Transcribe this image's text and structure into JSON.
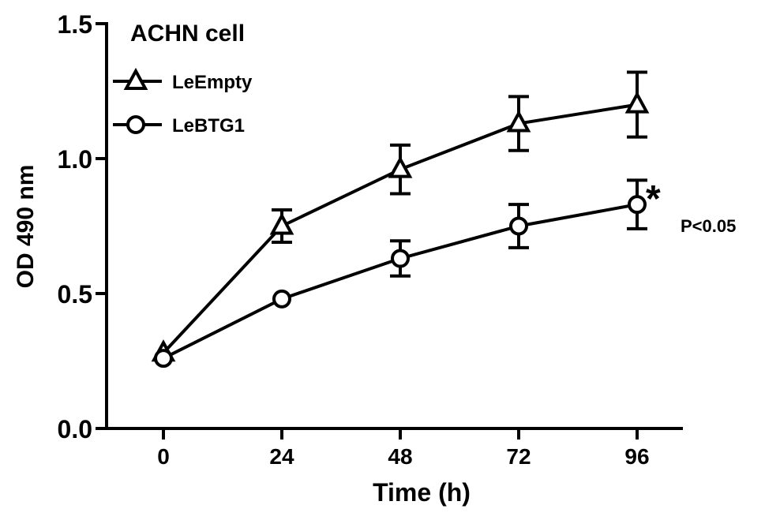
{
  "chart_data": {
    "type": "line",
    "title": "ACHN cell",
    "xlabel": "Time (h)",
    "ylabel": "OD 490 nm",
    "x": [
      0,
      24,
      48,
      72,
      96
    ],
    "x_tick_labels": [
      "0",
      "24",
      "48",
      "72",
      "96"
    ],
    "y_tick_labels": [
      "0.0",
      "0.5",
      "1.0",
      "1.5"
    ],
    "y_ticks": [
      0,
      0.5,
      1.0,
      1.5
    ],
    "ylim": [
      0,
      1.5
    ],
    "grid": false,
    "legend_position": "top-left",
    "series": [
      {
        "name": "LeEmpty",
        "marker": "triangle",
        "values": [
          0.28,
          0.75,
          0.96,
          1.13,
          1.2
        ],
        "errors": [
          0.0,
          0.06,
          0.09,
          0.1,
          0.12
        ]
      },
      {
        "name": "LeBTG1",
        "marker": "circle",
        "values": [
          0.26,
          0.48,
          0.63,
          0.75,
          0.83
        ],
        "errors": [
          0.0,
          0.0,
          0.065,
          0.08,
          0.09
        ]
      }
    ],
    "annotations": {
      "star": "*",
      "pvalue": "P<0.05"
    }
  }
}
